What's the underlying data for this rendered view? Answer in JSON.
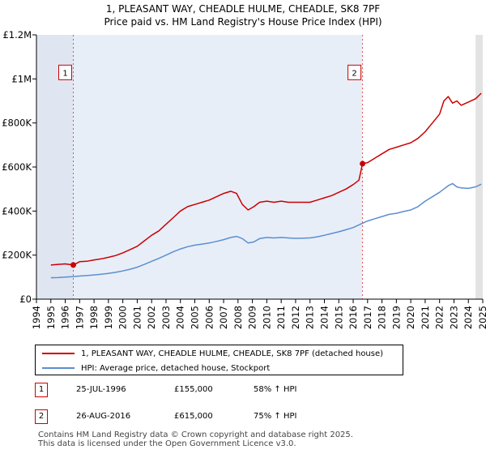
{
  "chart_data": {
    "type": "line",
    "title": "1, PLEASANT WAY, CHEADLE HULME, CHEADLE, SK8 7PF",
    "subtitle": "Price paid vs. HM Land Registry's House Price Index (HPI)",
    "xlim": [
      1994.0,
      2025.0
    ],
    "ylim": [
      0,
      1200000
    ],
    "yticks": [
      {
        "value": 0,
        "label": "£0"
      },
      {
        "value": 200000,
        "label": "£200K"
      },
      {
        "value": 400000,
        "label": "£400K"
      },
      {
        "value": 600000,
        "label": "£600K"
      },
      {
        "value": 800000,
        "label": "£800K"
      },
      {
        "value": 1000000,
        "label": "£1M"
      },
      {
        "value": 1200000,
        "label": "£1.2M"
      }
    ],
    "xticks": [
      "1994",
      "1995",
      "1996",
      "1997",
      "1998",
      "1999",
      "2000",
      "2001",
      "2002",
      "2003",
      "2004",
      "2005",
      "2006",
      "2007",
      "2008",
      "2009",
      "2010",
      "2011",
      "2012",
      "2013",
      "2014",
      "2015",
      "2016",
      "2017",
      "2018",
      "2019",
      "2020",
      "2021",
      "2022",
      "2023",
      "2024",
      "2025"
    ],
    "series": [
      {
        "name": "1, PLEASANT WAY, CHEADLE HULME, CHEADLE, SK8 7PF (detached house)",
        "color": "#cc0000",
        "x": [
          1995.0,
          1995.5,
          1996.0,
          1996.56,
          1997.0,
          1997.5,
          1998.0,
          1998.5,
          1999.0,
          1999.5,
          2000.0,
          2000.5,
          2001.0,
          2001.5,
          2002.0,
          2002.5,
          2003.0,
          2003.5,
          2004.0,
          2004.5,
          2005.0,
          2005.5,
          2006.0,
          2006.5,
          2007.0,
          2007.5,
          2007.9,
          2008.3,
          2008.7,
          2009.1,
          2009.5,
          2010.0,
          2010.5,
          2011.0,
          2011.5,
          2012.0,
          2012.5,
          2013.0,
          2013.5,
          2014.0,
          2014.5,
          2015.0,
          2015.5,
          2016.0,
          2016.4,
          2016.65,
          2017.0,
          2017.5,
          2018.0,
          2018.5,
          2019.0,
          2019.5,
          2020.0,
          2020.5,
          2021.0,
          2021.5,
          2022.0,
          2022.3,
          2022.6,
          2022.9,
          2023.2,
          2023.5,
          2024.0,
          2024.5,
          2024.9
        ],
        "values": [
          155000,
          158000,
          160000,
          155000,
          170000,
          172000,
          178000,
          183000,
          190000,
          198000,
          210000,
          225000,
          240000,
          265000,
          290000,
          310000,
          340000,
          370000,
          400000,
          420000,
          430000,
          440000,
          450000,
          465000,
          480000,
          490000,
          480000,
          430000,
          405000,
          420000,
          440000,
          445000,
          440000,
          445000,
          440000,
          440000,
          440000,
          440000,
          450000,
          460000,
          470000,
          485000,
          500000,
          520000,
          540000,
          615000,
          620000,
          640000,
          660000,
          680000,
          690000,
          700000,
          710000,
          730000,
          760000,
          800000,
          840000,
          900000,
          920000,
          890000,
          900000,
          880000,
          895000,
          910000,
          935000
        ]
      },
      {
        "name": "HPI: Average price, detached house, Stockport",
        "color": "#5b8fd0",
        "x": [
          1995.0,
          1995.5,
          1996.0,
          1996.5,
          1997.0,
          1997.5,
          1998.0,
          1998.5,
          1999.0,
          1999.5,
          2000.0,
          2000.5,
          2001.0,
          2001.5,
          2002.0,
          2002.5,
          2003.0,
          2003.5,
          2004.0,
          2004.5,
          2005.0,
          2005.5,
          2006.0,
          2006.5,
          2007.0,
          2007.5,
          2007.9,
          2008.3,
          2008.7,
          2009.1,
          2009.5,
          2010.0,
          2010.5,
          2011.0,
          2011.5,
          2012.0,
          2012.5,
          2013.0,
          2013.5,
          2014.0,
          2014.5,
          2015.0,
          2015.5,
          2016.0,
          2016.5,
          2017.0,
          2017.5,
          2018.0,
          2018.5,
          2019.0,
          2019.5,
          2020.0,
          2020.5,
          2021.0,
          2021.5,
          2022.0,
          2022.3,
          2022.6,
          2022.9,
          2023.2,
          2023.5,
          2024.0,
          2024.5,
          2024.9
        ],
        "values": [
          97000,
          98000,
          100000,
          102000,
          105000,
          107000,
          110000,
          113000,
          117000,
          122000,
          128000,
          136000,
          145000,
          158000,
          172000,
          185000,
          200000,
          215000,
          228000,
          238000,
          245000,
          250000,
          255000,
          262000,
          270000,
          280000,
          285000,
          275000,
          255000,
          260000,
          275000,
          280000,
          278000,
          280000,
          278000,
          276000,
          277000,
          278000,
          283000,
          290000,
          298000,
          306000,
          315000,
          325000,
          340000,
          355000,
          365000,
          375000,
          385000,
          390000,
          398000,
          405000,
          420000,
          445000,
          465000,
          485000,
          500000,
          515000,
          525000,
          510000,
          505000,
          503000,
          510000,
          522000
        ]
      }
    ],
    "annotations": [
      {
        "label": "1",
        "x": 1996.56,
        "value": 155000
      },
      {
        "label": "2",
        "x": 2016.65,
        "value": 615000
      }
    ],
    "legend_position": "bottom",
    "grid": false
  },
  "transactions": [
    {
      "label": "1",
      "date": "25-JUL-1996",
      "price": "£155,000",
      "hpi": "58% ↑ HPI"
    },
    {
      "label": "2",
      "date": "26-AUG-2016",
      "price": "£615,000",
      "hpi": "75% ↑ HPI"
    }
  ],
  "footer": {
    "line1": "Contains HM Land Registry data © Crown copyright and database right 2025.",
    "line2": "This data is licensed under the Open Government Licence v3.0."
  }
}
